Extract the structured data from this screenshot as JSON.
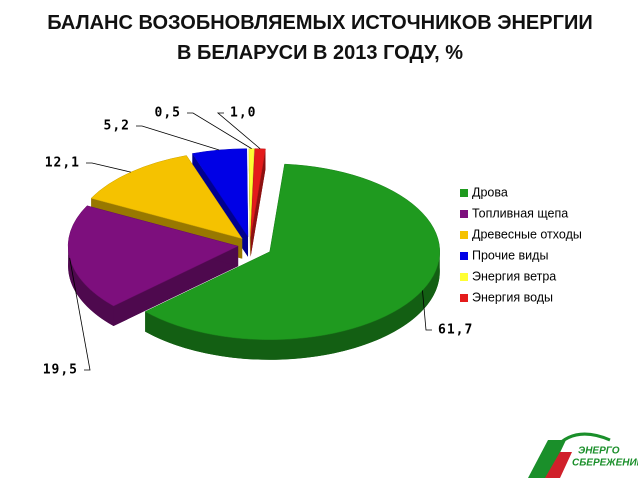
{
  "chart_data": {
    "type": "pie",
    "title": "БАЛАНС ВОЗОБНОВЛЯЕМЫХ ИСТОЧНИКОВ ЭНЕРГИИ В БЕЛАРУСИ В 2013 ГОДУ, %",
    "categories": [
      "Дрова",
      "Топливная щепа",
      "Древесные отходы",
      "Прочие виды",
      "Энергия ветра",
      "Энергия воды"
    ],
    "values": [
      61.7,
      19.5,
      12.1,
      5.2,
      0.5,
      1.0
    ],
    "value_labels": [
      "61,7",
      "19,5",
      "12,1",
      "5,2",
      "0,5",
      "1,0"
    ],
    "colors": [
      "#1f9a1f",
      "#7d0f7d",
      "#f5c200",
      "#0000e6",
      "#ffff33",
      "#e41b1b"
    ],
    "legend": "right"
  },
  "logo": {
    "lines": [
      "ЭНЕРГО",
      "СБЕРЕЖЕНИЕ"
    ]
  }
}
